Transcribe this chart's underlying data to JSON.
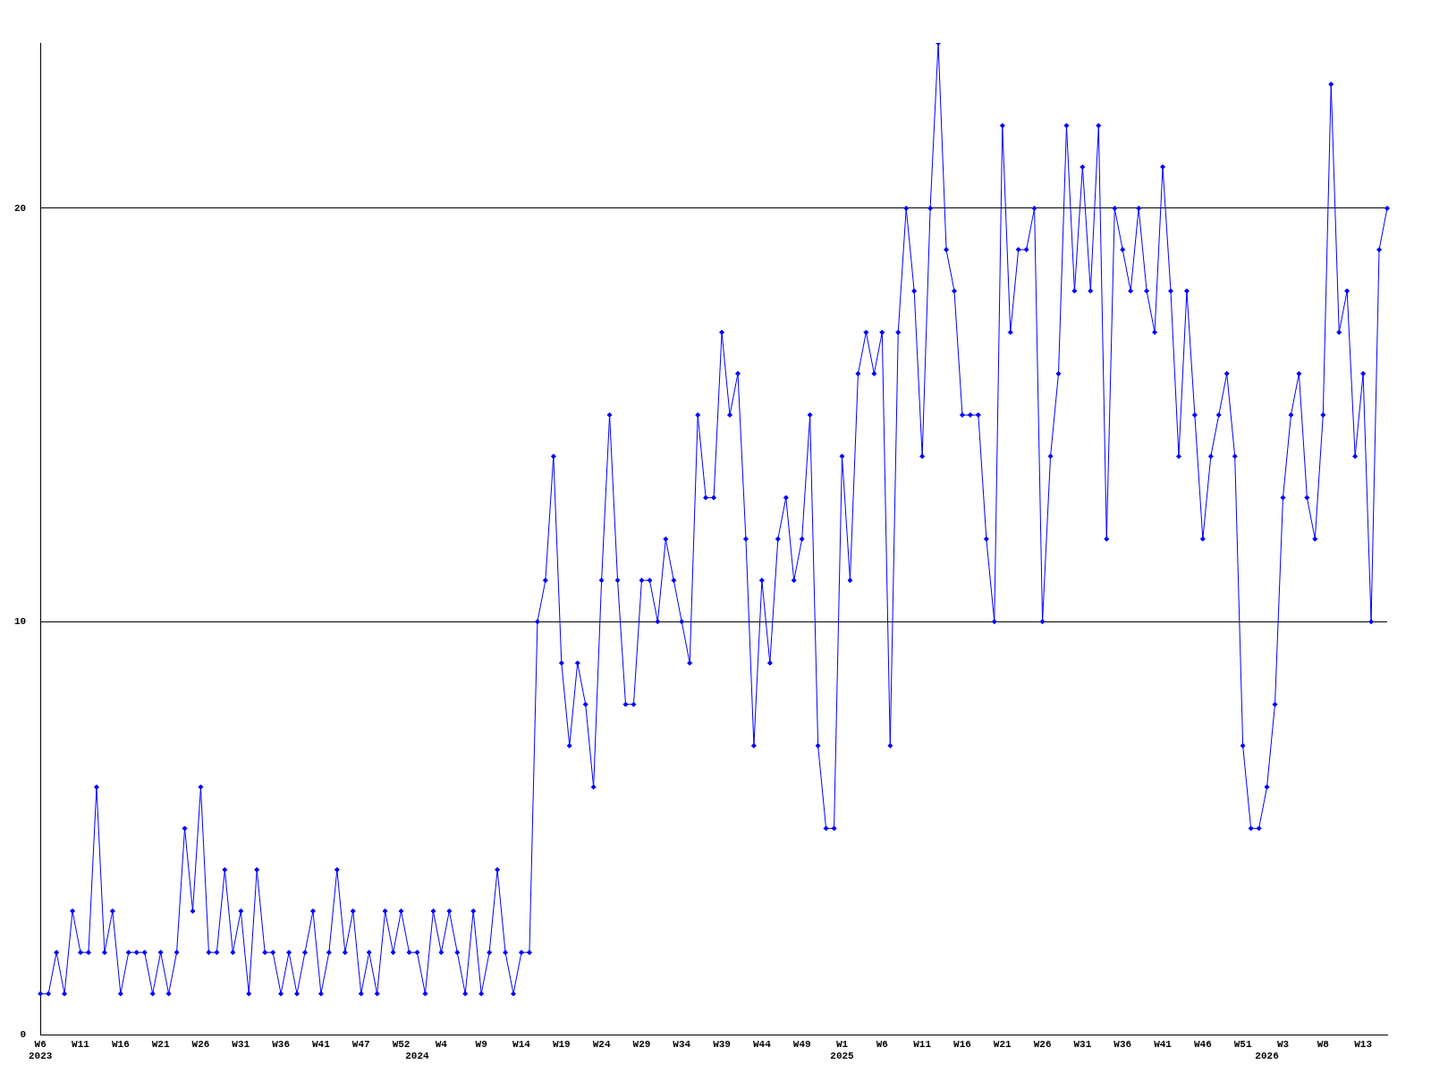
{
  "chart_data": {
    "type": "line",
    "categories": [
      "W6\n2023",
      null,
      null,
      null,
      null,
      "W11",
      null,
      null,
      null,
      null,
      "W16",
      null,
      null,
      null,
      null,
      "W21",
      null,
      null,
      null,
      null,
      "W26",
      null,
      null,
      null,
      null,
      "W31",
      null,
      null,
      null,
      null,
      "W36",
      null,
      null,
      null,
      null,
      "W41",
      null,
      null,
      null,
      null,
      "W47",
      null,
      null,
      null,
      null,
      "W52",
      null,
      "\n2024",
      null,
      null,
      "W4",
      null,
      null,
      null,
      null,
      "W9",
      null,
      null,
      null,
      null,
      "W14",
      null,
      null,
      null,
      null,
      "W19",
      null,
      null,
      null,
      null,
      "W24",
      null,
      null,
      null,
      null,
      "W29",
      null,
      null,
      null,
      null,
      "W34",
      null,
      null,
      null,
      null,
      "W39",
      null,
      null,
      null,
      null,
      "W44",
      null,
      null,
      null,
      null,
      "W49",
      null,
      null,
      null,
      null,
      "W1\n2025",
      null,
      null,
      null,
      null,
      "W6",
      null,
      null,
      null,
      null,
      "W11",
      null,
      null,
      null,
      null,
      "W16",
      null,
      null,
      null,
      null,
      "W21",
      null,
      null,
      null,
      null,
      "W26",
      null,
      null,
      null,
      null,
      "W31",
      null,
      null,
      null,
      null,
      "W36",
      null,
      null,
      null,
      null,
      "W41",
      null,
      null,
      null,
      null,
      "W46",
      null,
      null,
      null,
      null,
      "W51",
      null,
      null,
      "\n2026",
      null,
      "W3",
      null,
      null,
      null,
      null,
      "W8",
      null,
      null,
      null,
      null,
      "W13",
      null,
      null,
      null
    ],
    "series": [
      {
        "color": "#0000ff",
        "values": [
          1,
          1,
          2,
          1,
          3,
          2,
          2,
          6,
          2,
          3,
          1,
          2,
          2,
          2,
          1,
          2,
          1,
          2,
          5,
          3,
          6,
          2,
          2,
          4,
          2,
          3,
          1,
          4,
          2,
          2,
          1,
          2,
          1,
          2,
          3,
          1,
          2,
          4,
          2,
          3,
          1,
          2,
          1,
          3,
          2,
          3,
          2,
          2,
          1,
          3,
          2,
          3,
          2,
          1,
          3,
          1,
          2,
          4,
          2,
          1,
          2,
          2,
          10,
          11,
          14,
          9,
          7,
          9,
          8,
          6,
          11,
          15,
          11,
          8,
          8,
          11,
          11,
          10,
          12,
          11,
          10,
          9,
          15,
          13,
          13,
          17,
          15,
          16,
          12,
          7,
          11,
          9,
          12,
          13,
          11,
          12,
          15,
          7,
          5,
          5,
          14,
          11,
          16,
          17,
          16,
          17,
          7,
          17,
          20,
          18,
          14,
          20,
          24,
          19,
          18,
          15,
          15,
          15,
          12,
          10,
          22,
          17,
          19,
          19,
          20,
          10,
          14,
          16,
          22,
          18,
          21,
          18,
          22,
          12,
          20,
          19,
          18,
          20,
          18,
          17,
          21,
          18,
          14,
          18,
          15,
          12,
          14,
          15,
          16,
          14,
          7,
          5,
          5,
          6,
          8,
          13,
          15,
          16,
          13,
          12,
          15,
          23,
          17,
          18,
          14,
          16,
          10,
          19,
          20
        ]
      }
    ],
    "ylim": [
      0,
      24
    ],
    "yticks": [
      0,
      10,
      20
    ],
    "grid": "y",
    "legend": false,
    "marker": "diamond",
    "line_style": "solid"
  }
}
